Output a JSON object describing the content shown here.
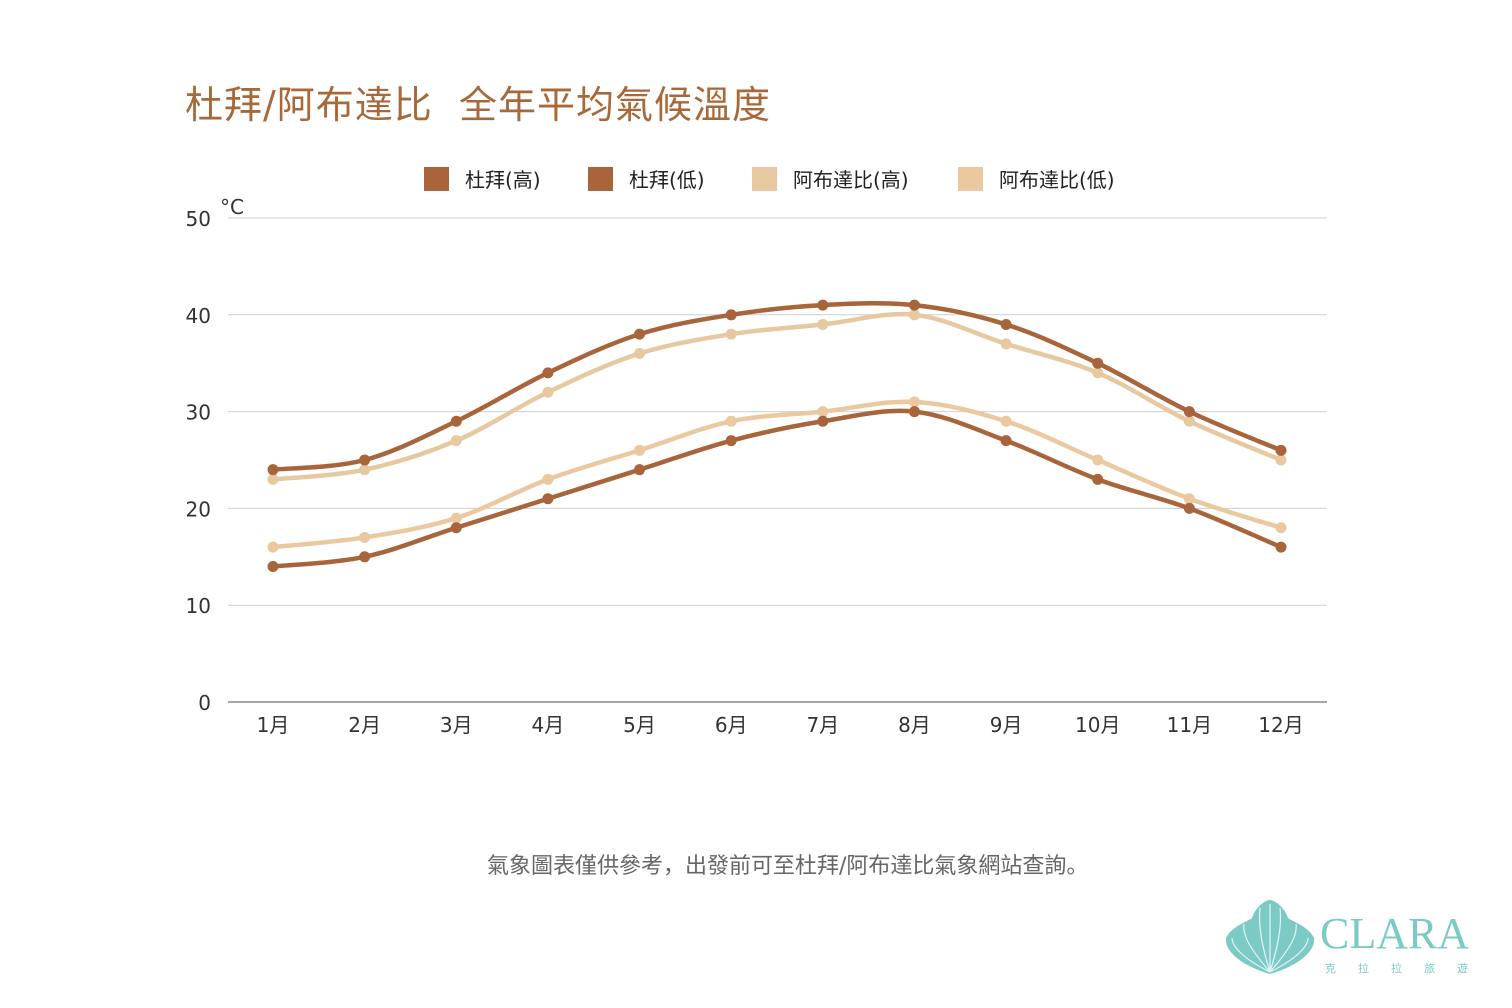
{
  "chart_data": {
    "type": "line",
    "title": "杜拜/阿布達比  全年平均氣候溫度",
    "ylabel": "°C",
    "xlabel": "",
    "ylim": [
      0,
      50
    ],
    "yticks": [
      0,
      10,
      20,
      30,
      40,
      50
    ],
    "grid": true,
    "legend_position": "top",
    "categories": [
      "1月",
      "2月",
      "3月",
      "4月",
      "5月",
      "6月",
      "7月",
      "8月",
      "9月",
      "10月",
      "11月",
      "12月"
    ],
    "series": [
      {
        "name": "杜拜(高)",
        "color": "#a8643a",
        "values": [
          24,
          25,
          29,
          34,
          38,
          40,
          41,
          41,
          39,
          35,
          30,
          26
        ]
      },
      {
        "name": "杜拜(低)",
        "color": "#a8643a",
        "values": [
          14,
          15,
          18,
          21,
          24,
          27,
          29,
          30,
          27,
          23,
          20,
          16
        ]
      },
      {
        "name": "阿布達比(高)",
        "color": "#e6c9a0",
        "values": [
          23,
          24,
          27,
          32,
          36,
          38,
          39,
          40,
          37,
          34,
          29,
          25
        ]
      },
      {
        "name": "阿布達比(低)",
        "color": "#ebc9a0",
        "values": [
          16,
          17,
          19,
          23,
          26,
          29,
          30,
          31,
          29,
          25,
          21,
          18
        ]
      }
    ]
  },
  "footnote": "氣象圖表僅供參考，出發前可至杜拜/阿布達比氣象網站查詢。",
  "logo": {
    "text": "CLARA",
    "subtext": "克 拉 拉 旅 遊",
    "color": "#7ccac6"
  }
}
